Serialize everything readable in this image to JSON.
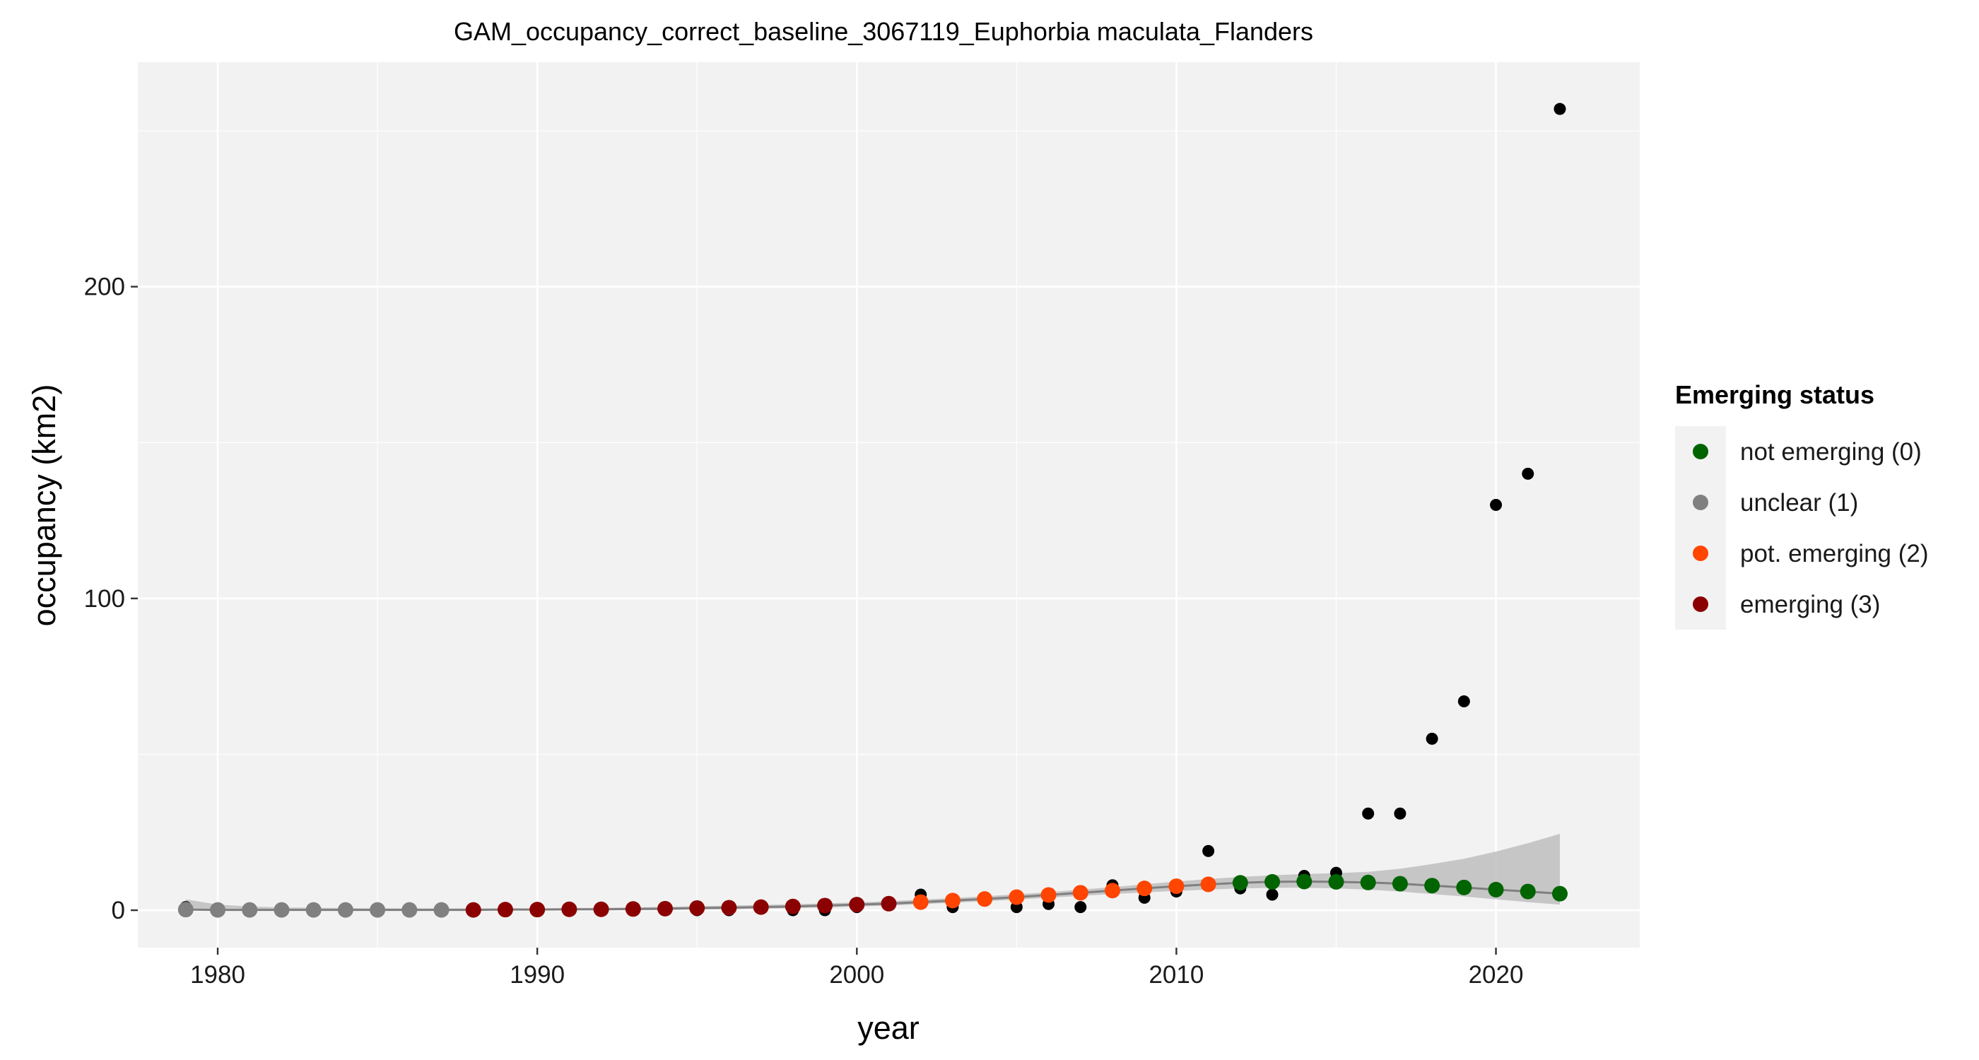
{
  "chart_data": {
    "type": "scatter",
    "title": "GAM_occupancy_correct_baseline_3067119_Euphorbia maculata_Flanders",
    "xlabel": "year",
    "ylabel": "occupancy (km2)",
    "xlim": [
      1977.5,
      2024.5
    ],
    "ylim": [
      -12,
      272
    ],
    "x_ticks": [
      1980,
      1990,
      2000,
      2010,
      2020
    ],
    "y_ticks": [
      0,
      100,
      200
    ],
    "grid": true,
    "legend": {
      "title": "Emerging status",
      "placement": "right",
      "entries": [
        {
          "label": "not emerging (0)",
          "color": "#006400"
        },
        {
          "label": "unclear (1)",
          "color": "#808080"
        },
        {
          "label": "pot. emerging (2)",
          "color": "#ff4500"
        },
        {
          "label": "emerging (3)",
          "color": "#8b0000"
        }
      ]
    },
    "colors": {
      "observed": "#000000",
      "panel_background": "#f2f2f2",
      "grid": "#ffffff",
      "ribbon": "#bebebe",
      "fit_line": "#7f7f7f"
    },
    "observed": {
      "x": [
        1979,
        1980,
        1981,
        1982,
        1983,
        1984,
        1985,
        1986,
        1987,
        1988,
        1989,
        1990,
        1991,
        1992,
        1993,
        1994,
        1995,
        1996,
        1997,
        1998,
        1999,
        2000,
        2001,
        2002,
        2003,
        2004,
        2005,
        2006,
        2007,
        2008,
        2009,
        2010,
        2011,
        2012,
        2013,
        2014,
        2015,
        2016,
        2017,
        2018,
        2019,
        2020,
        2021,
        2022
      ],
      "y": [
        1,
        0,
        0,
        0,
        0,
        0,
        0,
        0,
        0,
        0,
        0,
        0,
        0,
        0,
        0,
        0,
        0,
        0,
        1,
        0,
        0,
        1,
        2,
        5,
        1,
        4,
        1,
        2,
        1,
        8,
        4,
        6,
        19,
        7,
        5,
        11,
        12,
        31,
        31,
        55,
        67,
        130,
        140,
        257
      ]
    },
    "fitted": {
      "x": [
        1979,
        1980,
        1981,
        1982,
        1983,
        1984,
        1985,
        1986,
        1987,
        1988,
        1989,
        1990,
        1991,
        1992,
        1993,
        1994,
        1995,
        1996,
        1997,
        1998,
        1999,
        2000,
        2001,
        2002,
        2003,
        2004,
        2005,
        2006,
        2007,
        2008,
        2009,
        2010,
        2011,
        2012,
        2013,
        2014,
        2015,
        2016,
        2017,
        2018,
        2019,
        2020,
        2021,
        2022
      ],
      "y": [
        0.2,
        0.1,
        0.1,
        0.1,
        0.1,
        0.1,
        0.1,
        0.1,
        0.1,
        0.1,
        0.2,
        0.2,
        0.3,
        0.3,
        0.4,
        0.5,
        0.7,
        0.8,
        1.0,
        1.2,
        1.5,
        1.8,
        2.1,
        2.6,
        3.1,
        3.6,
        4.2,
        4.9,
        5.6,
        6.3,
        7.0,
        7.7,
        8.3,
        8.8,
        9.1,
        9.2,
        9.1,
        8.9,
        8.5,
        7.9,
        7.3,
        6.6,
        6.0,
        5.3
      ],
      "status": [
        1,
        1,
        1,
        1,
        1,
        1,
        1,
        1,
        1,
        3,
        3,
        3,
        3,
        3,
        3,
        3,
        3,
        3,
        3,
        3,
        3,
        3,
        3,
        2,
        2,
        2,
        2,
        2,
        2,
        2,
        2,
        2,
        2,
        0,
        0,
        0,
        0,
        0,
        0,
        0,
        0,
        0,
        0,
        0
      ],
      "lower": [
        0,
        0,
        0,
        0,
        0,
        0,
        0,
        0,
        0,
        0,
        0,
        0,
        0,
        0,
        0,
        0,
        0.2,
        0.3,
        0.5,
        0.7,
        0.9,
        1.2,
        1.5,
        1.9,
        2.4,
        2.9,
        3.4,
        4.0,
        4.6,
        5.2,
        5.7,
        6.2,
        6.6,
        7.0,
        7.2,
        7.2,
        7.0,
        6.6,
        6.0,
        5.2,
        4.4,
        3.5,
        2.6,
        1.8
      ],
      "upper": [
        3.5,
        1.8,
        1.2,
        0.9,
        0.8,
        0.7,
        0.6,
        0.6,
        0.6,
        0.6,
        0.6,
        0.6,
        0.7,
        0.8,
        0.9,
        1.1,
        1.3,
        1.5,
        1.7,
        1.9,
        2.2,
        2.5,
        2.9,
        3.4,
        3.9,
        4.5,
        5.1,
        5.8,
        6.6,
        7.4,
        8.3,
        9.2,
        10.0,
        10.7,
        11.2,
        11.6,
        11.9,
        12.3,
        13.3,
        14.8,
        16.5,
        18.8,
        21.5,
        24.5
      ]
    }
  }
}
